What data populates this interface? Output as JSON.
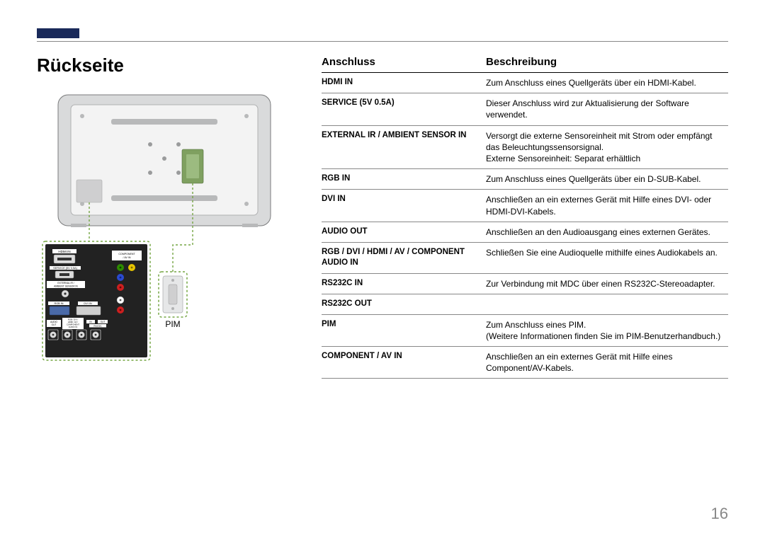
{
  "page": {
    "title": "Rückseite",
    "pim_caption": "PIM",
    "page_number": "16"
  },
  "table": {
    "headers": {
      "col1": "Anschluss",
      "col2": "Beschreibung"
    },
    "rows": [
      {
        "port": "HDMI IN",
        "desc": "Zum Anschluss eines Quellgeräts über ein HDMI-Kabel."
      },
      {
        "port": "SERVICE (5V 0.5A)",
        "desc": "Dieser Anschluss wird zur Aktualisierung der Software verwendet."
      },
      {
        "port": "EXTERNAL IR / AMBIENT SENSOR IN",
        "desc": "Versorgt die externe Sensoreinheit mit Strom oder empfängt das Beleuchtungssensorsignal.\nExterne Sensoreinheit: Separat erhältlich"
      },
      {
        "port": "RGB IN",
        "desc": "Zum Anschluss eines Quellgeräts über ein D-SUB-Kabel."
      },
      {
        "port": "DVI IN",
        "desc": "Anschließen an ein externes Gerät mit Hilfe eines DVI- oder HDMI-DVI-Kabels."
      },
      {
        "port": "AUDIO OUT",
        "desc": "Anschließen an den Audioausgang eines externen Gerätes."
      },
      {
        "port": "RGB / DVI / HDMI / AV / COMPONENT AUDIO IN",
        "desc": "Schließen Sie eine Audioquelle mithilfe eines Audiokabels an."
      },
      {
        "port": "RS232C IN",
        "desc": "Zur Verbindung mit MDC über einen RS232C-Stereoadapter."
      },
      {
        "port": "RS232C OUT",
        "desc": ""
      },
      {
        "port": "PIM",
        "desc": "Zum Anschluss eines PIM.\n(Weitere Informationen finden Sie im PIM-Benutzerhandbuch.)"
      },
      {
        "port": "COMPONENT / AV IN",
        "desc": "Anschließen an ein externes Gerät mit Hilfe eines Component/AV-Kabels."
      }
    ]
  },
  "diagram": {
    "main": {
      "outer_fill": "#d9dadb",
      "inner_fill": "#f3f3f3",
      "slot_fill": "#b8b9ba",
      "highlight_fill": "#7fa060",
      "border": "#7a7b7c"
    },
    "callout": {
      "panel_fill": "#222222",
      "panel_stroke": "#75a543",
      "dash": "3,3",
      "text_color": "#ffffff",
      "port_fill": "#dcdcdc",
      "vga_fill": "#4a6aa8",
      "dvi_fill": "#cfcfcf",
      "jack_green": "#2e8b00",
      "jack_red": "#cc1f1f",
      "jack_blue": "#2a4ad0",
      "jack_white": "#ffffff",
      "jack_yellow": "#e6c400",
      "labels": {
        "hdmi": "HDMI IN",
        "service": "SERVICE (5V 0.5A)",
        "ext_ir": "EXTERNAL IR /\nAMBIENT SENSOR IN",
        "rgb": "RGB IN",
        "dvi": "DVI IN",
        "audio_out": "AUDIO\nOUT",
        "audio_in": "RGB / DVI /\nHDMI / AV /\nCOMPONENT\nAUDIO IN",
        "rs_in": "IN",
        "rs_out": "OUT",
        "rs232c": "RS232C",
        "comp_av": "COMPONENT\n/ AV IN"
      }
    },
    "pim_box": {
      "fill": "#e6e7e8",
      "stroke": "#75a543"
    }
  }
}
